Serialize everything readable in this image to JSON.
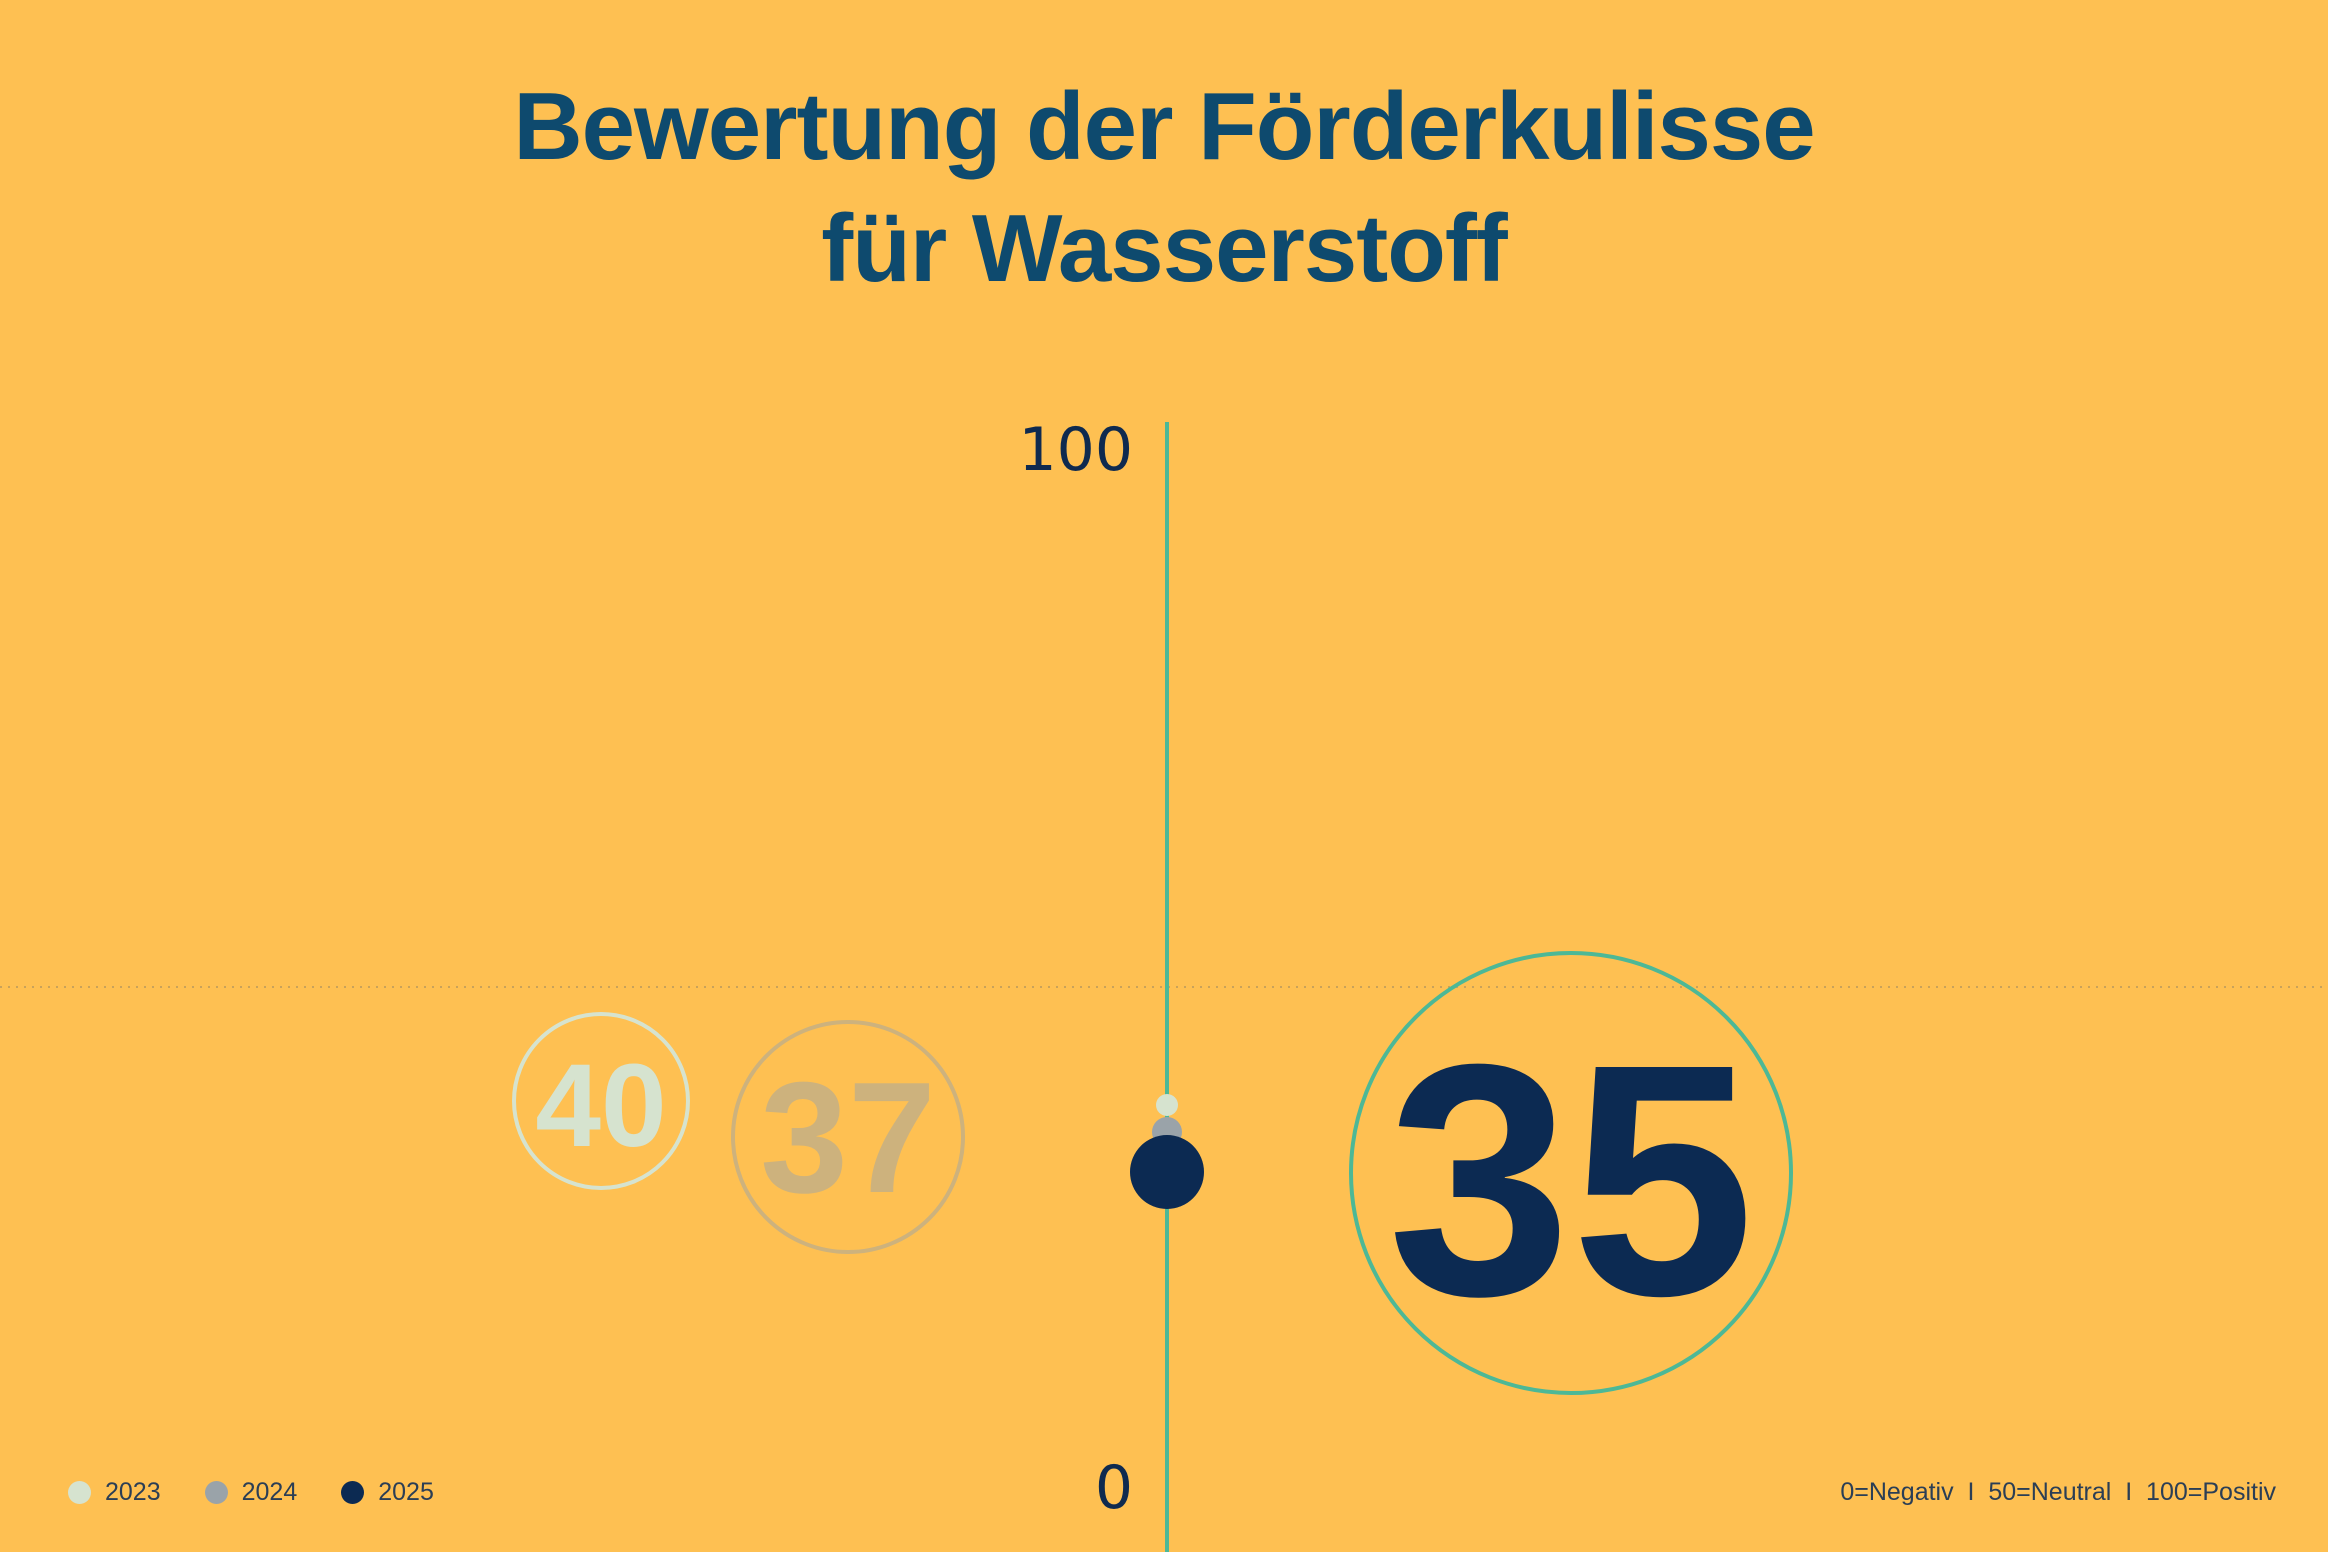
{
  "chart_data": {
    "type": "scatter",
    "title_lines": [
      "Bewertung der Förderkulisse",
      "für Wasserstoff"
    ],
    "y_ticks": [
      "100",
      "0"
    ],
    "ylim": [
      0,
      100
    ],
    "series": [
      {
        "name": "2023",
        "value": 40,
        "label": "40",
        "color": "#D6E3CF"
      },
      {
        "name": "2024",
        "value": 37,
        "label": "37",
        "color": "#9AA3A9"
      },
      {
        "name": "2025",
        "value": 35,
        "label": "35",
        "color": "#0C2A52"
      }
    ],
    "reference_value": 50,
    "axis_color": "#4DB896",
    "scale_note": "0=Negativ  I  50=Neutral  I  100=Positiv",
    "legend_placement": "bottom-left"
  }
}
